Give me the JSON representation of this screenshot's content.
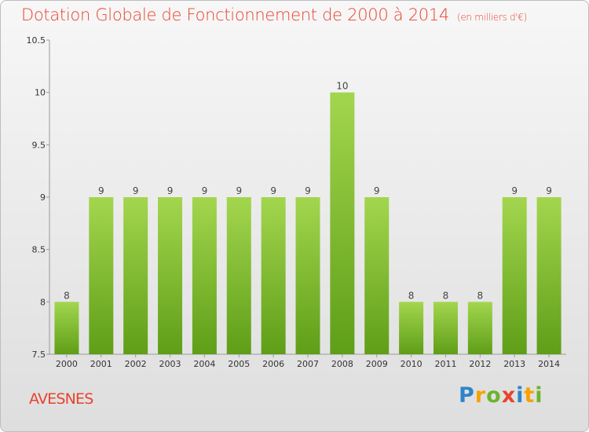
{
  "header": {
    "title": "Dotation Globale de Fonctionnement de 2000 à 2014",
    "subtitle": "(en milliers d'€)"
  },
  "footer": {
    "commune": "AVESNES",
    "logo": "Proxiti",
    "logo_letters": [
      {
        "ch": "P",
        "color": "#2e84c8"
      },
      {
        "ch": "r",
        "color": "#f5a300"
      },
      {
        "ch": "o",
        "color": "#6ab42d"
      },
      {
        "ch": "x",
        "color": "#e8432e"
      },
      {
        "ch": "i",
        "color": "#2e84c8"
      },
      {
        "ch": "t",
        "color": "#f5a300"
      },
      {
        "ch": "i",
        "color": "#6ab42d"
      }
    ]
  },
  "colors": {
    "bar_top": "#a3d64e",
    "bar_bottom": "#5f9e18",
    "title": "#e8432e",
    "axis": "#999999"
  },
  "chart_data": {
    "type": "bar",
    "title": "Dotation Globale de Fonctionnement de 2000 à 2014",
    "subtitle": "(en milliers d'€)",
    "xlabel": "",
    "ylabel": "",
    "categories": [
      "2000",
      "2001",
      "2002",
      "2003",
      "2004",
      "2005",
      "2006",
      "2007",
      "2008",
      "2009",
      "2010",
      "2011",
      "2012",
      "2013",
      "2014"
    ],
    "values": [
      8,
      9,
      9,
      9,
      9,
      9,
      9,
      9,
      10,
      9,
      8,
      8,
      8,
      9,
      9
    ],
    "value_labels": [
      "8",
      "9",
      "9",
      "9",
      "9",
      "9",
      "9",
      "9",
      "10",
      "9",
      "8",
      "8",
      "8",
      "9",
      "9"
    ],
    "ylim": [
      7.5,
      10.5
    ],
    "yticks": [
      7.5,
      8,
      8.5,
      9,
      9.5,
      10,
      10.5
    ],
    "ytick_labels": [
      "7.5",
      "8",
      "8.5",
      "9",
      "9.5",
      "10",
      "10.5"
    ],
    "grid": false,
    "legend": "none"
  }
}
